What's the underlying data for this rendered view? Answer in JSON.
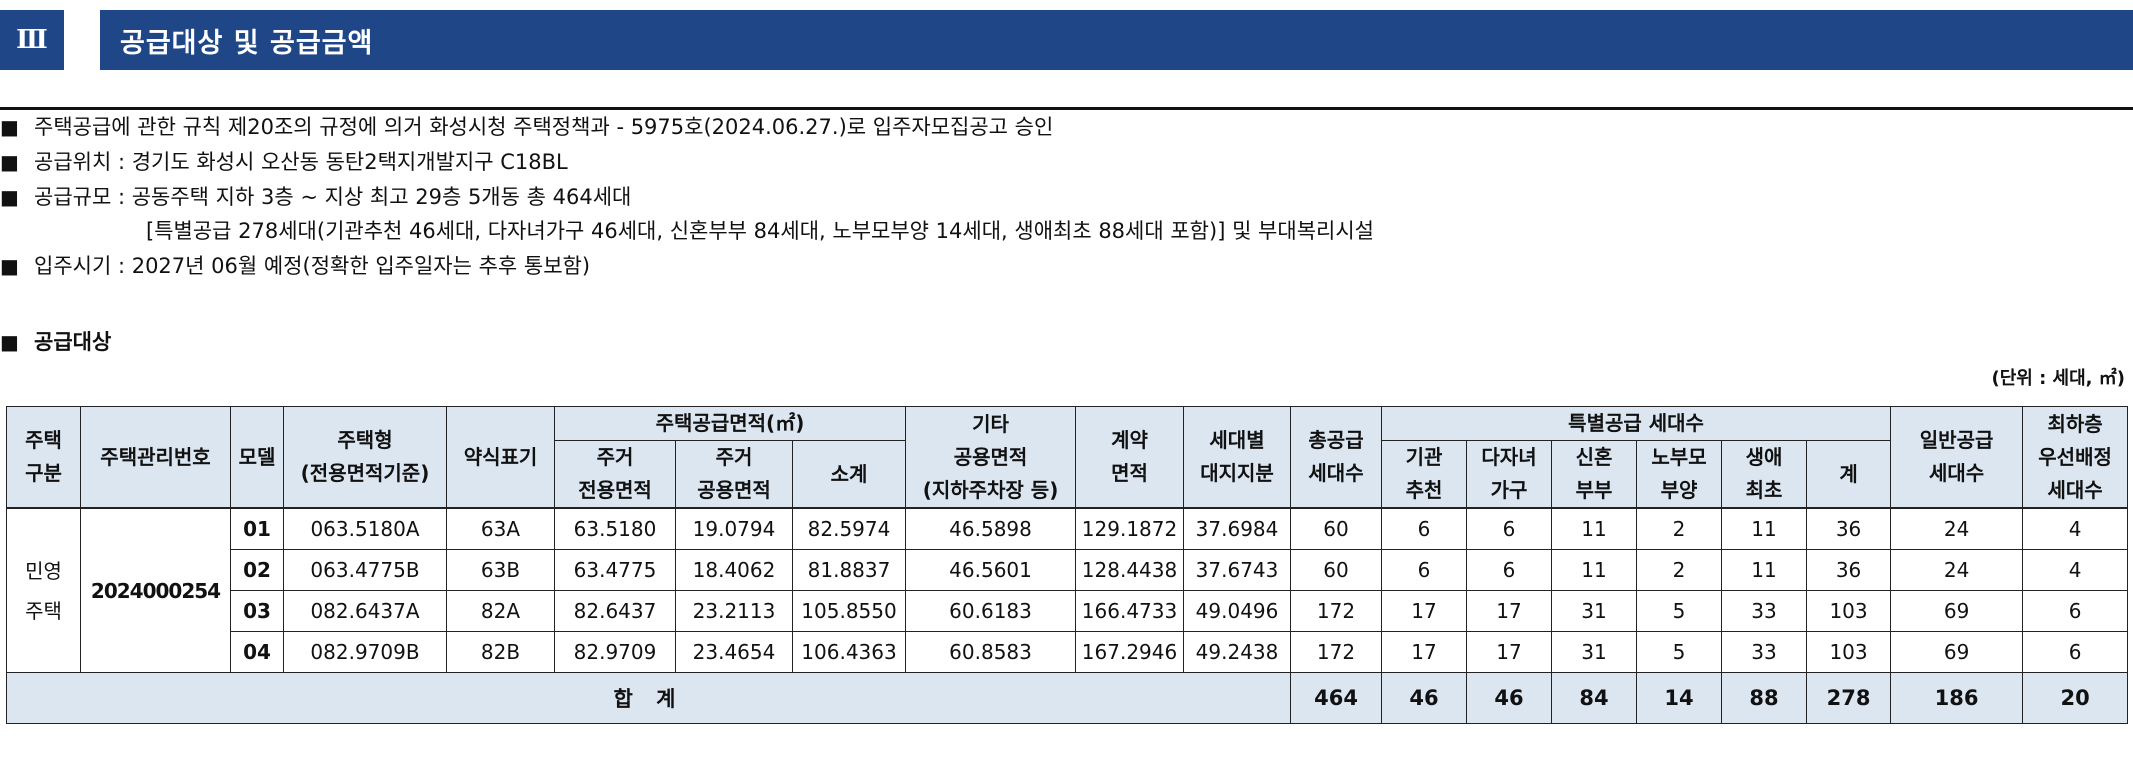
{
  "header": {
    "section_number": "Ⅲ",
    "title": "공급대상 및 공급금액"
  },
  "bullets": [
    "주택공급에 관한 규칙 제20조의 규정에 의거 화성시청 주택정책과 - 5975호(2024.06.27.)로 입주자모집공고 승인",
    "공급위치 : 경기도 화성시 오산동 동탄2택지개발지구 C18BL",
    "공급규모 : 공동주택 지하 3층 ~ 지상 최고 29층 5개동 총 464세대",
    "[특별공급 278세대(기관추천 46세대, 다자녀가구 46세대, 신혼부부 84세대, 노부모부양 14세대, 생애최초 88세대 포함)] 및 부대복리시설",
    "입주시기 : 2027년 06월 예정(정확한 입주일자는 추후 통보함)"
  ],
  "bullet_mark": "■",
  "sub_heading": "공급대상",
  "unit_note": "(단위 : 세대, ㎡)",
  "table": {
    "headers": {
      "house_type_a": "주택",
      "house_type_b": "구분",
      "mgmt_no": "주택관리번호",
      "model": "모델",
      "housing_type_a": "주택형",
      "housing_type_b": "(전용면적기준)",
      "abbr": "약식표기",
      "area_group": "주택공급면적(㎡)",
      "excl_a": "주거",
      "excl_b": "전용면적",
      "common_a": "주거",
      "common_b": "공용면적",
      "subtotal": "소계",
      "other_a": "기타",
      "other_b": "공용면적",
      "other_c": "(지하주차장 등)",
      "contract_a": "계약",
      "contract_b": "면적",
      "land_a": "세대별",
      "land_b": "대지지분",
      "total_supply_a": "총공급",
      "total_supply_b": "세대수",
      "special_group": "특별공급 세대수",
      "inst_a": "기관",
      "inst_b": "추천",
      "multi_a": "다자녀",
      "multi_b": "가구",
      "newly_a": "신혼",
      "newly_b": "부부",
      "elder_a": "노부모",
      "elder_b": "부양",
      "first_a": "생애",
      "first_b": "최초",
      "sum": "계",
      "general_a": "일반공급",
      "general_b": "세대수",
      "lowest_a": "최하층",
      "lowest_b": "우선배정",
      "lowest_c": "세대수"
    },
    "house_type_a": "민영",
    "house_type_b": "주택",
    "mgmt_no": "2024000254",
    "rows": [
      {
        "model": "01",
        "type": "063.5180A",
        "abbr": "63A",
        "excl": "63.5180",
        "common": "19.0794",
        "subtotal": "82.5974",
        "other": "46.5898",
        "contract": "129.1872",
        "land": "37.6984",
        "total": "60",
        "inst": "6",
        "multi": "6",
        "newly": "11",
        "elder": "2",
        "first": "11",
        "sum": "36",
        "general": "24",
        "lowest": "4"
      },
      {
        "model": "02",
        "type": "063.4775B",
        "abbr": "63B",
        "excl": "63.4775",
        "common": "18.4062",
        "subtotal": "81.8837",
        "other": "46.5601",
        "contract": "128.4438",
        "land": "37.6743",
        "total": "60",
        "inst": "6",
        "multi": "6",
        "newly": "11",
        "elder": "2",
        "first": "11",
        "sum": "36",
        "general": "24",
        "lowest": "4"
      },
      {
        "model": "03",
        "type": "082.6437A",
        "abbr": "82A",
        "excl": "82.6437",
        "common": "23.2113",
        "subtotal": "105.8550",
        "other": "60.6183",
        "contract": "166.4733",
        "land": "49.0496",
        "total": "172",
        "inst": "17",
        "multi": "17",
        "newly": "31",
        "elder": "5",
        "first": "33",
        "sum": "103",
        "general": "69",
        "lowest": "6"
      },
      {
        "model": "04",
        "type": "082.9709B",
        "abbr": "82B",
        "excl": "82.9709",
        "common": "23.4654",
        "subtotal": "106.4363",
        "other": "60.8583",
        "contract": "167.2946",
        "land": "49.2438",
        "total": "172",
        "inst": "17",
        "multi": "17",
        "newly": "31",
        "elder": "5",
        "first": "33",
        "sum": "103",
        "general": "69",
        "lowest": "6"
      }
    ],
    "totals": {
      "label": "합 계",
      "total": "464",
      "inst": "46",
      "multi": "46",
      "newly": "84",
      "elder": "14",
      "first": "88",
      "sum": "278",
      "general": "186",
      "lowest": "20"
    }
  },
  "colors": {
    "header_bg": "#1f4788",
    "table_header_bg": "#dce6f1"
  }
}
